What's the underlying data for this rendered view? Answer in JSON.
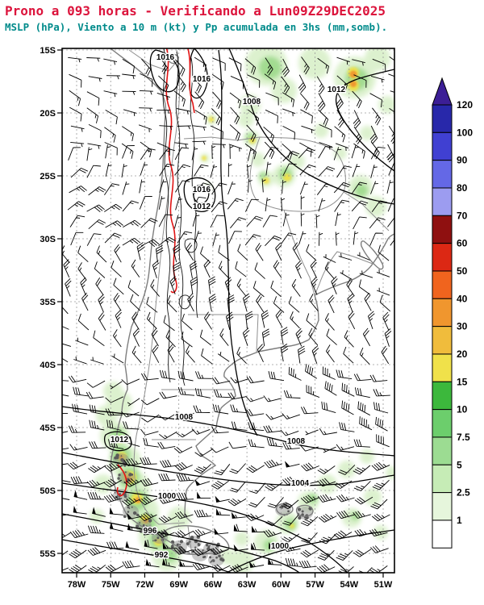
{
  "header": {
    "title": "Prono a 093 horas - Verificando a Lun09Z29DEC2025",
    "subtitle": "MSLP (hPa), Viento a 10 m (kt) y Pp acumulada en 3hs (mm,somb)."
  },
  "colors": {
    "title_red": "#dc143c",
    "subtitle_teal": "#008b8b"
  },
  "map": {
    "lat_ticks": [
      "15S",
      "20S",
      "25S",
      "30S",
      "35S",
      "40S",
      "45S",
      "50S",
      "55S"
    ],
    "lon_ticks": [
      "78W",
      "75W",
      "72W",
      "69W",
      "66W",
      "63W",
      "60W",
      "57W",
      "54W",
      "51W"
    ],
    "isobar_labels": [
      "1016",
      "1016",
      "1008",
      "1012",
      "1016",
      "1012",
      "1008",
      "1008",
      "1012",
      "1004",
      "1000",
      "996",
      "992",
      "1000"
    ]
  },
  "colorbar": {
    "levels": [
      "1",
      "2.5",
      "5",
      "7.5",
      "10",
      "15",
      "20",
      "30",
      "40",
      "50",
      "60",
      "70",
      "80",
      "90",
      "100",
      "120"
    ],
    "colors": [
      "#ffffff",
      "#e6f6dc",
      "#c6ecb6",
      "#9cdc92",
      "#6cce6c",
      "#3cb83c",
      "#f0e14a",
      "#f0bc3c",
      "#f0962e",
      "#f0641e",
      "#dc2814",
      "#8f1010",
      "#9c9cf0",
      "#6468e6",
      "#4040d2",
      "#2828aa"
    ],
    "triangle_color": "#3c1e96"
  },
  "chart_data": {
    "type": "heatmap",
    "title": "Prono a 093 horas - Verificando a Lun09Z29DEC2025",
    "subtitle": "MSLP (hPa), Viento a 10 m (kt) y Pp acumulada en 3hs (mm,somb).",
    "projection": "lat-lon map of southern South America",
    "x_axis_ticks": [
      "78W",
      "75W",
      "72W",
      "69W",
      "66W",
      "63W",
      "60W",
      "57W",
      "54W",
      "51W"
    ],
    "y_axis_ticks": [
      "15S",
      "20S",
      "25S",
      "30S",
      "35S",
      "40S",
      "45S",
      "50S",
      "55S"
    ],
    "shaded_variable": "accumulated precipitation 3h (mm)",
    "shading_levels_mm": [
      1,
      2.5,
      5,
      7.5,
      10,
      15,
      20,
      30,
      40,
      50,
      60,
      70,
      80,
      90,
      100,
      120
    ],
    "contour_variable": "MSLP (hPa)",
    "isobar_values_visible_hpa": [
      992,
      996,
      1000,
      1004,
      1008,
      1012,
      1016
    ],
    "wind_variable": "10 m wind barbs (kt)",
    "precip_maxima": [
      {
        "area": "northeast sector (S Brazil / Paraguay, ~17-25S 57-63W)",
        "peak_mm": "20-40 with small orange core"
      },
      {
        "area": "south Chile coast / Andes (~46-54S 72-76W)",
        "peak_mm": "20-50, yellow-orange cores over terrain"
      },
      {
        "area": "southeast Atlantic band (~48-56S 57-66W)",
        "peak_mm": "2.5-10"
      }
    ],
    "pressure_pattern": [
      {
        "system": "subtropical ridge / highs along-near Andes",
        "labels": [
          1016,
          1012
        ]
      },
      {
        "system": "strong westerlies with lows south of 55S",
        "labels": [
          1008,
          1004,
          1000,
          996,
          992
        ]
      }
    ],
    "grid": "dashed gray graticule every 3 deg lon / 5 deg lat",
    "legend_position": "vertical colorbar right side"
  }
}
